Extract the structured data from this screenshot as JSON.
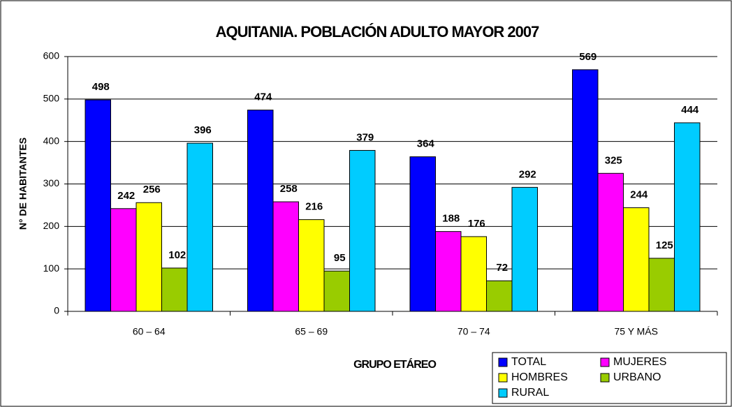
{
  "chart_data": {
    "type": "bar",
    "title": "AQUITANIA. POBLACIÓN ADULTO MAYOR 2007",
    "x_label": "GRUPO ETÁREO",
    "y_label": "N° DE HABITANTES",
    "categories": [
      "60 – 64",
      "65 – 69",
      "70 – 74",
      "75 Y MÁS"
    ],
    "series": [
      {
        "name": "TOTAL",
        "color": "#0000ff",
        "values": [
          498,
          474,
          364,
          569
        ]
      },
      {
        "name": "MUJERES",
        "color": "#ff00ff",
        "values": [
          242,
          258,
          188,
          325
        ]
      },
      {
        "name": "HOMBRES",
        "color": "#ffff00",
        "values": [
          256,
          216,
          176,
          244
        ]
      },
      {
        "name": "URBANO",
        "color": "#99cc00",
        "values": [
          102,
          95,
          72,
          125
        ]
      },
      {
        "name": "RURAL",
        "color": "#00ccff",
        "values": [
          396,
          379,
          292,
          444
        ]
      }
    ],
    "ylim": [
      0,
      600
    ],
    "yticks": [
      0,
      100,
      200,
      300,
      400,
      500,
      600
    ],
    "grid": true,
    "legend": "bottom-right"
  }
}
